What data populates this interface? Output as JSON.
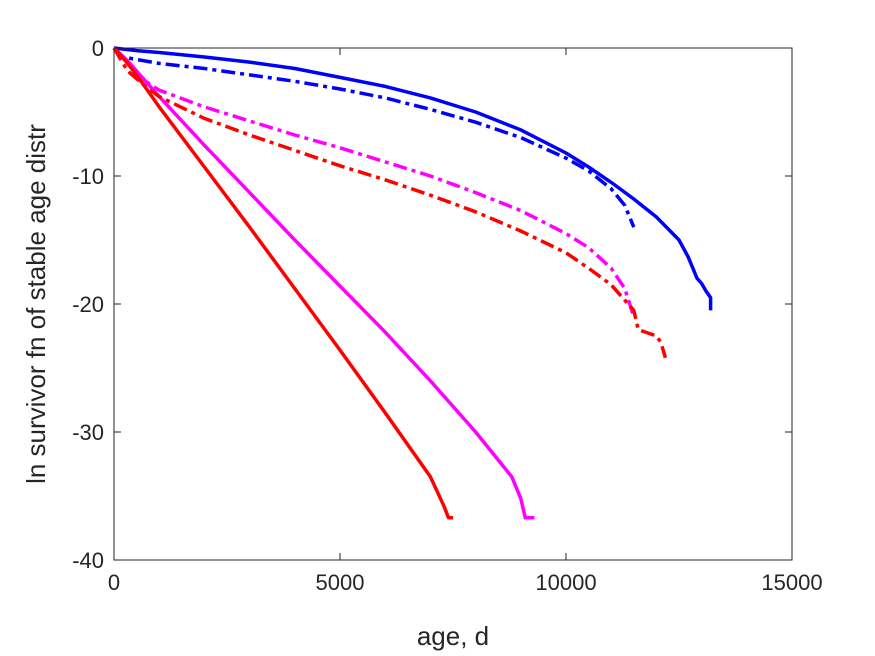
{
  "chart_data": {
    "type": "line",
    "title": "",
    "xlabel": "age, d",
    "ylabel": "ln survivor fn of stable age distr",
    "xlim": [
      0,
      15000
    ],
    "ylim": [
      -40,
      0
    ],
    "xticks": [
      0,
      5000,
      10000,
      15000
    ],
    "yticks": [
      0,
      -10,
      -20,
      -30,
      -40
    ],
    "grid": false,
    "legend": "none",
    "series": [
      {
        "color": "#0000ff",
        "style": "solid",
        "x": [
          0,
          500,
          1000,
          2000,
          3000,
          4000,
          5000,
          6000,
          7000,
          8000,
          9000,
          10000,
          10500,
          11000,
          11500,
          12000,
          12500,
          12700,
          12900,
          13000,
          13100,
          13200,
          13200
        ],
        "y": [
          0,
          -0.2,
          -0.35,
          -0.7,
          -1.1,
          -1.6,
          -2.3,
          -3.0,
          -3.9,
          -5.0,
          -6.4,
          -8.2,
          -9.3,
          -10.5,
          -11.8,
          -13.2,
          -15.0,
          -16.3,
          -18.0,
          -18.4,
          -19.0,
          -19.5,
          -20.5
        ]
      },
      {
        "color": "#0000ff",
        "style": "dashdot",
        "x": [
          0,
          200,
          500,
          1000,
          2000,
          3000,
          4000,
          5000,
          6000,
          7000,
          8000,
          9000,
          10000,
          10500,
          11000,
          11300,
          11500
        ],
        "y": [
          0,
          -0.7,
          -0.9,
          -1.2,
          -1.6,
          -2.1,
          -2.6,
          -3.2,
          -3.9,
          -4.8,
          -5.8,
          -7.0,
          -8.6,
          -9.6,
          -11.0,
          -12.3,
          -14.0
        ]
      },
      {
        "color": "#ff00ff",
        "style": "solid",
        "x": [
          0,
          300,
          600,
          1000,
          2000,
          3000,
          4000,
          5000,
          6000,
          7000,
          8000,
          8800,
          9000,
          9100,
          9200,
          9300
        ],
        "y": [
          0,
          -1.0,
          -2.2,
          -3.8,
          -7.6,
          -11.3,
          -15.0,
          -18.6,
          -22.2,
          -26.0,
          -30.0,
          -33.5,
          -35.2,
          -36.7,
          -36.7,
          -36.7
        ]
      },
      {
        "color": "#ff00ff",
        "style": "dashdot",
        "x": [
          0,
          300,
          700,
          1000,
          2000,
          3000,
          4000,
          5000,
          6000,
          7000,
          8000,
          9000,
          10000,
          10500,
          11000,
          11300,
          11500
        ],
        "y": [
          0,
          -1.2,
          -2.6,
          -3.3,
          -4.6,
          -5.7,
          -6.8,
          -7.8,
          -8.9,
          -10.0,
          -11.3,
          -12.7,
          -14.5,
          -15.6,
          -17.2,
          -18.8,
          -21.0
        ]
      },
      {
        "color": "#ff0000",
        "style": "solid",
        "x": [
          0,
          300,
          600,
          1000,
          2000,
          3000,
          4000,
          5000,
          6000,
          7000,
          7300,
          7400,
          7500
        ],
        "y": [
          0,
          -1.2,
          -2.6,
          -4.6,
          -9.3,
          -14.0,
          -18.8,
          -23.6,
          -28.5,
          -33.5,
          -35.8,
          -36.7,
          -36.7
        ]
      },
      {
        "color": "#ff0000",
        "style": "dashdot",
        "x": [
          0,
          300,
          700,
          1000,
          2000,
          3000,
          4000,
          5000,
          6000,
          7000,
          8000,
          9000,
          10000,
          10500,
          11000,
          11500,
          11600,
          12000,
          12100,
          12200
        ],
        "y": [
          0,
          -1.8,
          -3.0,
          -3.8,
          -5.5,
          -6.8,
          -8.0,
          -9.2,
          -10.3,
          -11.5,
          -12.8,
          -14.3,
          -16.0,
          -17.2,
          -18.5,
          -20.5,
          -22.0,
          -22.5,
          -23.0,
          -24.2
        ]
      }
    ]
  }
}
